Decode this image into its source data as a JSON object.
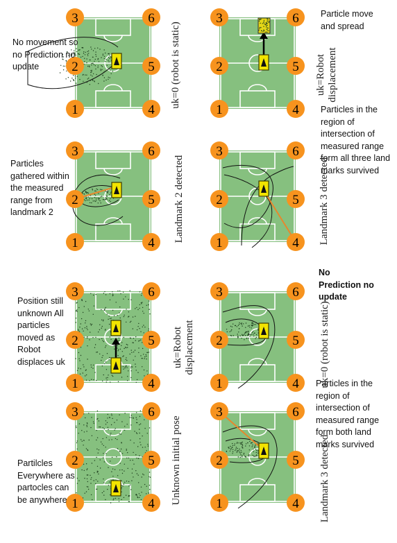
{
  "landmark_numbers": [
    "1",
    "2",
    "3",
    "4",
    "5",
    "6"
  ],
  "notes": {
    "p1": "No movement so no Prediction no update",
    "p2": "Particle move and spread",
    "p3": "Particles gathered within the measured range from landmark 2",
    "p4": "Particles in the region of intersection of measured range form all three land marks survived",
    "p5": "Position still unknown All particles moved as Robot displaces uk",
    "p6": "No Prediction no update",
    "p7": "Partilcles Everywhere as partocles can be anywhere",
    "p8": "Particles in the region of intersection of measured range form both land marks survived"
  },
  "vertical_labels": {
    "p1": "uk=0 (robot is static)",
    "p2": "uk=Robot displacement",
    "p3": "Landmark 2 detected",
    "p4": "Landmark 3 detected",
    "p5": "uk=Robot displacement",
    "p6": "uk=0 (robot is static)",
    "p7": "Unknown initial pose",
    "p8": "Landmark 3 detected"
  },
  "colors": {
    "field": "#86c07f",
    "field_lines": "#ffffff",
    "landmark": "#f7931e",
    "robot": "#f2e400",
    "range_line": "#e8872c",
    "particles": "#1d3d1d"
  }
}
